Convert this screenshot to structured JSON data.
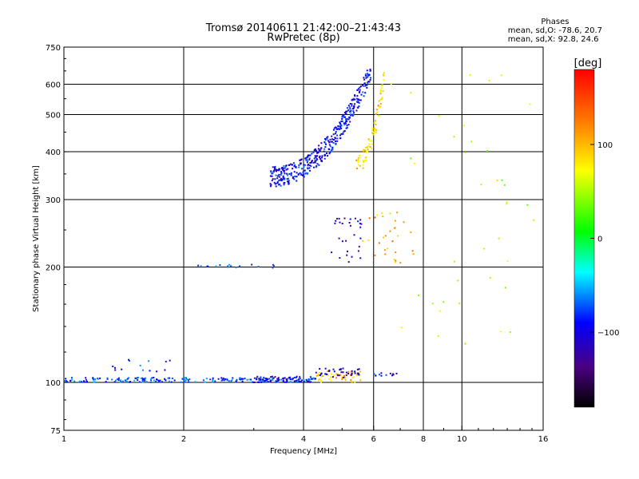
{
  "header": {
    "title_line1": "Tromsø 20140611 21:42:00–21:43:43",
    "title_line2": "RwPretec (8p)"
  },
  "phases_box": {
    "title": "Phases",
    "line_o": "mean, sd,O:  -78.6, 20.7",
    "line_x": "mean, sd,X:  92.8, 24.6"
  },
  "colorbar": {
    "label": "[deg]",
    "range": [
      -180,
      180
    ],
    "ticks": [
      "100",
      "0",
      "−100"
    ],
    "tick_values": [
      100,
      0,
      -100
    ]
  },
  "chart_data": {
    "type": "scatter",
    "xlabel": "Frequency [MHz]",
    "ylabel": "Stationary phase Virtual Height [km]",
    "xscale": "log",
    "yscale": "log",
    "xlim": [
      1,
      16
    ],
    "ylim": [
      75,
      750
    ],
    "xticks": [
      1,
      2,
      4,
      6,
      8,
      10,
      16
    ],
    "xtick_labels": [
      "1",
      "2",
      "4",
      "6",
      "8",
      "10",
      "16"
    ],
    "xgrid": [
      2,
      4,
      6,
      8,
      10
    ],
    "yticks": [
      75,
      100,
      200,
      300,
      400,
      500,
      600,
      750
    ],
    "ytick_labels": [
      "75",
      "100",
      "200",
      "300",
      "400",
      "500",
      "600",
      "750"
    ],
    "ygrid": [
      100,
      200,
      300,
      400,
      500,
      600
    ],
    "grid": true,
    "colormap": "rainbow phase, black (-180) → violet → blue → cyan → green → yellow → orange → red (+180)",
    "trace_segments": [
      {
        "desc": "E-layer O trace",
        "x_range": [
          1.0,
          4.3
        ],
        "h_range": [
          100,
          103
        ],
        "phase": -75,
        "n": 230
      },
      {
        "desc": "E-layer X trace",
        "x_range": [
          3.0,
          4.3
        ],
        "h_range": [
          100,
          104
        ],
        "phase": -105,
        "n": 50
      },
      {
        "desc": "E-layer X upper",
        "x_range": [
          4.3,
          5.6
        ],
        "h_range": [
          100,
          107
        ],
        "phase": 95,
        "n": 45
      },
      {
        "desc": "E-layer blue cluster",
        "x_range": [
          4.3,
          5.6
        ],
        "h_range": [
          103,
          109
        ],
        "phase": -110,
        "n": 40
      },
      {
        "desc": "Es spread low",
        "x_range": [
          1.3,
          1.95
        ],
        "h_range": [
          103,
          115
        ],
        "phase": -85,
        "n": 14
      },
      {
        "desc": "E-layer tail",
        "x_range": [
          6.0,
          6.9
        ],
        "h_range": [
          104,
          106
        ],
        "phase": -100,
        "n": 12
      },
      {
        "desc": "F-layer O trace",
        "x_range": [
          3.3,
          5.9
        ],
        "h_range": [
          345,
          650
        ],
        "phase": -95,
        "n": 420
      },
      {
        "desc": "F-layer X trace",
        "x_range": [
          5.4,
          6.4
        ],
        "h_range": [
          370,
          640
        ],
        "phase": 85,
        "n": 80
      },
      {
        "desc": "F1 cusp region",
        "x_range": [
          4.7,
          5.6
        ],
        "h_range": [
          205,
          270
        ],
        "phase": -110,
        "n": 30
      },
      {
        "desc": "F1 X cusp region",
        "x_range": [
          5.6,
          7.6
        ],
        "h_range": [
          205,
          280
        ],
        "phase": 110,
        "n": 30
      },
      {
        "desc": "Low F scatter",
        "x_range": [
          2.1,
          3.6
        ],
        "h_range": [
          199,
          203
        ],
        "phase": -70,
        "n": 18
      },
      {
        "desc": "Sparse high-frequency scatter",
        "x_range": [
          6.5,
          15.5
        ],
        "h_range": [
          115,
          700
        ],
        "phase": 60,
        "n": 40
      }
    ]
  }
}
